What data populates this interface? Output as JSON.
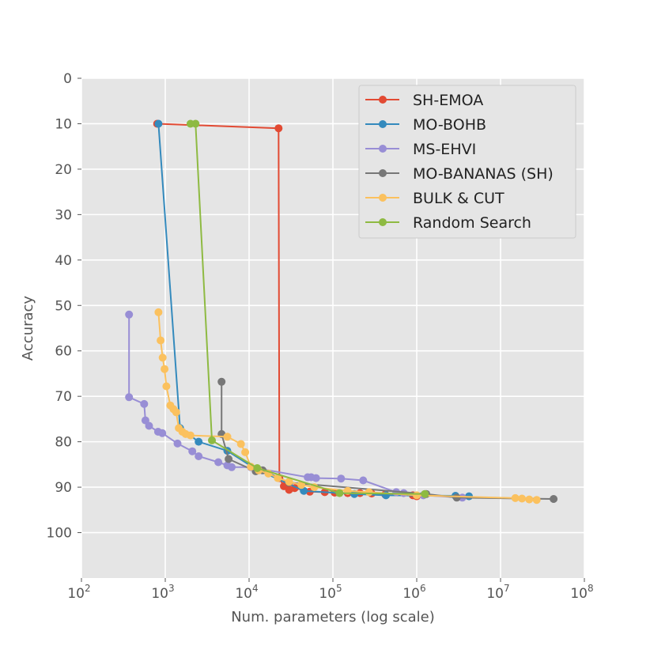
{
  "chart_data": {
    "type": "line",
    "xlabel": "Num. parameters (log scale)",
    "ylabel": "Accuracy",
    "xscale": "log",
    "xlim": [
      100,
      100000000
    ],
    "ylim": [
      110,
      0
    ],
    "x_tick_values": [
      100,
      1000,
      10000,
      100000,
      1000000,
      10000000,
      100000000
    ],
    "x_tick_labels": [
      {
        "base": "10",
        "exp": "2"
      },
      {
        "base": "10",
        "exp": "3"
      },
      {
        "base": "10",
        "exp": "4"
      },
      {
        "base": "10",
        "exp": "5"
      },
      {
        "base": "10",
        "exp": "6"
      },
      {
        "base": "10",
        "exp": "7"
      },
      {
        "base": "10",
        "exp": "8"
      }
    ],
    "y_ticks": [
      0,
      10,
      20,
      30,
      40,
      50,
      60,
      70,
      80,
      90,
      100
    ],
    "grid": true,
    "background_color": "#e5e5e5",
    "legend_position": "top-right",
    "series": [
      {
        "name": "SH-EMOA",
        "color": "#e24a33",
        "x": [
          800,
          22500,
          23000,
          26000,
          30000,
          35000,
          53000,
          80000,
          105000,
          150000,
          210000,
          290000,
          420000,
          900000,
          1000000
        ],
        "y": [
          10,
          11,
          88,
          89.8,
          90.6,
          90.2,
          91,
          91.1,
          91.2,
          91.3,
          91.3,
          91.4,
          91.6,
          91.8,
          92
        ]
      },
      {
        "name": "MO-BOHB",
        "color": "#348abd",
        "x": [
          830,
          1500,
          2500,
          5500,
          12000,
          45000,
          180000,
          430000,
          2900000,
          4200000
        ],
        "y": [
          10,
          77,
          80,
          82,
          86,
          90.8,
          91.5,
          91.8,
          91.9,
          92
        ]
      },
      {
        "name": "MS-EHVI",
        "color": "#988ed5",
        "x": [
          370,
          370,
          560,
          580,
          640,
          820,
          920,
          1400,
          2100,
          2500,
          4300,
          5500,
          6200,
          10500,
          50000,
          55000,
          63000,
          125000,
          230000,
          570000,
          700000,
          1200000,
          3500000
        ],
        "y": [
          52,
          70.2,
          71.7,
          75.3,
          76.5,
          77.8,
          78.1,
          80.4,
          82.1,
          83.2,
          84.5,
          85.2,
          85.6,
          85.6,
          87.8,
          87.8,
          88,
          88.1,
          88.5,
          91.1,
          91.3,
          91.8,
          92.3
        ]
      },
      {
        "name": "MO-BANANAS (SH)",
        "color": "#777777",
        "x": [
          4700,
          4700,
          5700,
          12000,
          14500,
          30000,
          1300000,
          3000000,
          43000000
        ],
        "y": [
          66.8,
          78.3,
          83.8,
          86.5,
          86.3,
          89,
          91.5,
          92.3,
          92.6
        ]
      },
      {
        "name": "BULK & CUT",
        "color": "#fbc15e",
        "x": [
          830,
          880,
          930,
          980,
          1030,
          1150,
          1250,
          1350,
          1450,
          1600,
          1750,
          2000,
          5500,
          8000,
          9000,
          10500,
          13000,
          17000,
          22000,
          30000,
          42000,
          60000,
          150000,
          270000,
          1000000,
          15000000,
          18000000,
          22000000,
          27000000
        ],
        "y": [
          51.5,
          57.7,
          61.5,
          64,
          67.8,
          72,
          72.8,
          73.5,
          77,
          77.8,
          78.3,
          78.6,
          78.9,
          80.5,
          82.3,
          85.5,
          86.3,
          87,
          88,
          88.8,
          89.5,
          90,
          90.8,
          91.1,
          91.8,
          92.4,
          92.5,
          92.7,
          92.8
        ]
      },
      {
        "name": "Random Search",
        "color": "#8eba42",
        "x": [
          2000,
          2300,
          3600,
          12500,
          120000,
          1250000
        ],
        "y": [
          10,
          10,
          79.7,
          85.8,
          91.3,
          91.5
        ]
      }
    ]
  }
}
